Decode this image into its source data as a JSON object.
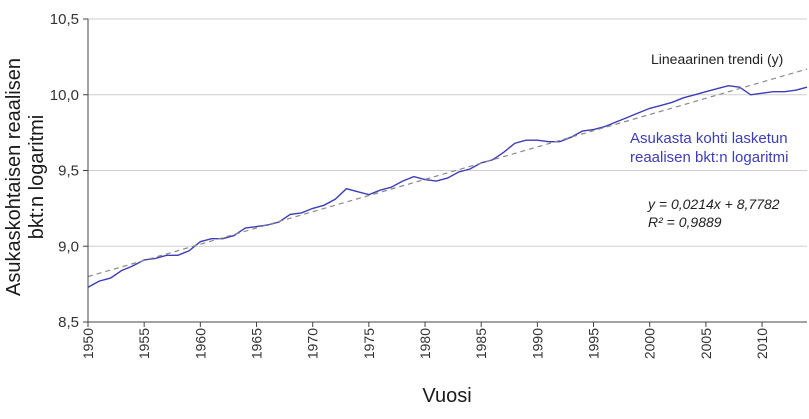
{
  "chart_data": {
    "type": "line",
    "xlabel": "Vuosi",
    "ylabel_lines": [
      "Asukaskohtaisen reaalisen",
      "bkt:n logaritmi"
    ],
    "xlim": [
      1950,
      2014
    ],
    "ylim": [
      8.5,
      10.5
    ],
    "x_ticks": [
      1950,
      1955,
      1960,
      1965,
      1970,
      1975,
      1980,
      1985,
      1990,
      1995,
      2000,
      2005,
      2010
    ],
    "x_tick_labels": [
      "1950",
      "1955",
      "1960",
      "1965",
      "1970",
      "1975",
      "1980",
      "1985",
      "1990",
      "1995",
      "2000",
      "2005",
      "2010"
    ],
    "y_ticks": [
      8.5,
      9.0,
      9.5,
      10.0,
      10.5
    ],
    "y_tick_labels": [
      "8,5",
      "9,0",
      "9,5",
      "10,0",
      "10,5"
    ],
    "grid": "horizontal",
    "series": [
      {
        "name_lines": [
          "Asukasta kohti lasketun",
          "reaalisen bkt:n logaritmi"
        ],
        "color": "#3d3db8",
        "x": [
          1950,
          1951,
          1952,
          1953,
          1954,
          1955,
          1956,
          1957,
          1958,
          1959,
          1960,
          1961,
          1962,
          1963,
          1964,
          1965,
          1966,
          1967,
          1968,
          1969,
          1970,
          1971,
          1972,
          1973,
          1974,
          1975,
          1976,
          1977,
          1978,
          1979,
          1980,
          1981,
          1982,
          1983,
          1984,
          1985,
          1986,
          1987,
          1988,
          1989,
          1990,
          1991,
          1992,
          1993,
          1994,
          1995,
          1996,
          1997,
          1998,
          1999,
          2000,
          2001,
          2002,
          2003,
          2004,
          2005,
          2006,
          2007,
          2008,
          2009,
          2010,
          2011,
          2012,
          2013,
          2014
        ],
        "y": [
          8.73,
          8.77,
          8.79,
          8.84,
          8.87,
          8.91,
          8.92,
          8.94,
          8.94,
          8.97,
          9.03,
          9.05,
          9.05,
          9.07,
          9.12,
          9.13,
          9.14,
          9.16,
          9.21,
          9.22,
          9.25,
          9.27,
          9.31,
          9.38,
          9.36,
          9.34,
          9.37,
          9.39,
          9.43,
          9.46,
          9.44,
          9.43,
          9.45,
          9.49,
          9.51,
          9.55,
          9.57,
          9.62,
          9.68,
          9.7,
          9.7,
          9.69,
          9.69,
          9.72,
          9.76,
          9.77,
          9.79,
          9.82,
          9.85,
          9.88,
          9.91,
          9.93,
          9.95,
          9.98,
          10.0,
          10.02,
          10.04,
          10.06,
          10.05,
          10.0,
          10.01,
          10.02,
          10.02,
          10.03,
          10.05
        ]
      },
      {
        "name": "Lineaarinen trendi (y)",
        "color": "#8a8a8a",
        "dashed": true,
        "x": [
          1950,
          2014
        ],
        "y": [
          8.7996,
          10.1692
        ]
      }
    ],
    "equation": {
      "lines": [
        "y = 0,0214x + 8,7782",
        "R² = 0,9889"
      ]
    }
  }
}
